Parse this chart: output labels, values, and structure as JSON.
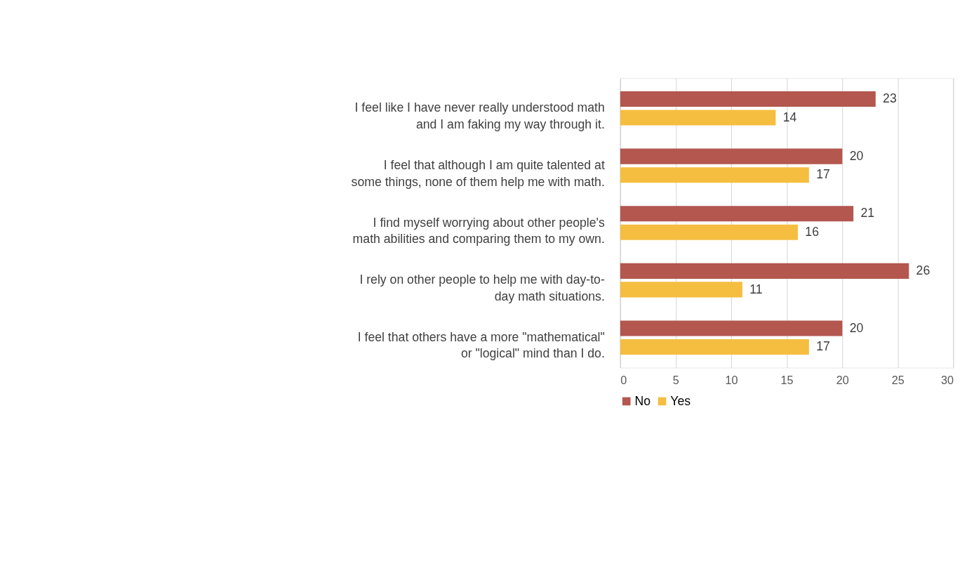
{
  "chart_data": {
    "type": "bar",
    "orientation": "horizontal",
    "categories": [
      "I feel like I have never really understood math and I am faking my way through it.",
      "I feel that although I am quite talented at some things, none of them help me with math.",
      "I find myself worrying about other people's math abilities and comparing them to my own.",
      "I rely on other people to help me with day-to-day math situations.",
      "I feel that others have a more \"mathematical\" or \"logical\" mind than I do."
    ],
    "series": [
      {
        "name": "No",
        "color": "#b3574f",
        "values": [
          23,
          20,
          21,
          26,
          20
        ]
      },
      {
        "name": "Yes",
        "color": "#f5be41",
        "values": [
          14,
          17,
          16,
          11,
          17
        ]
      }
    ],
    "xlim": [
      0,
      30
    ],
    "xticks": [
      0,
      5,
      10,
      15,
      20,
      25,
      30
    ],
    "grid": "x",
    "legend": "bottom",
    "data_labels": true
  }
}
